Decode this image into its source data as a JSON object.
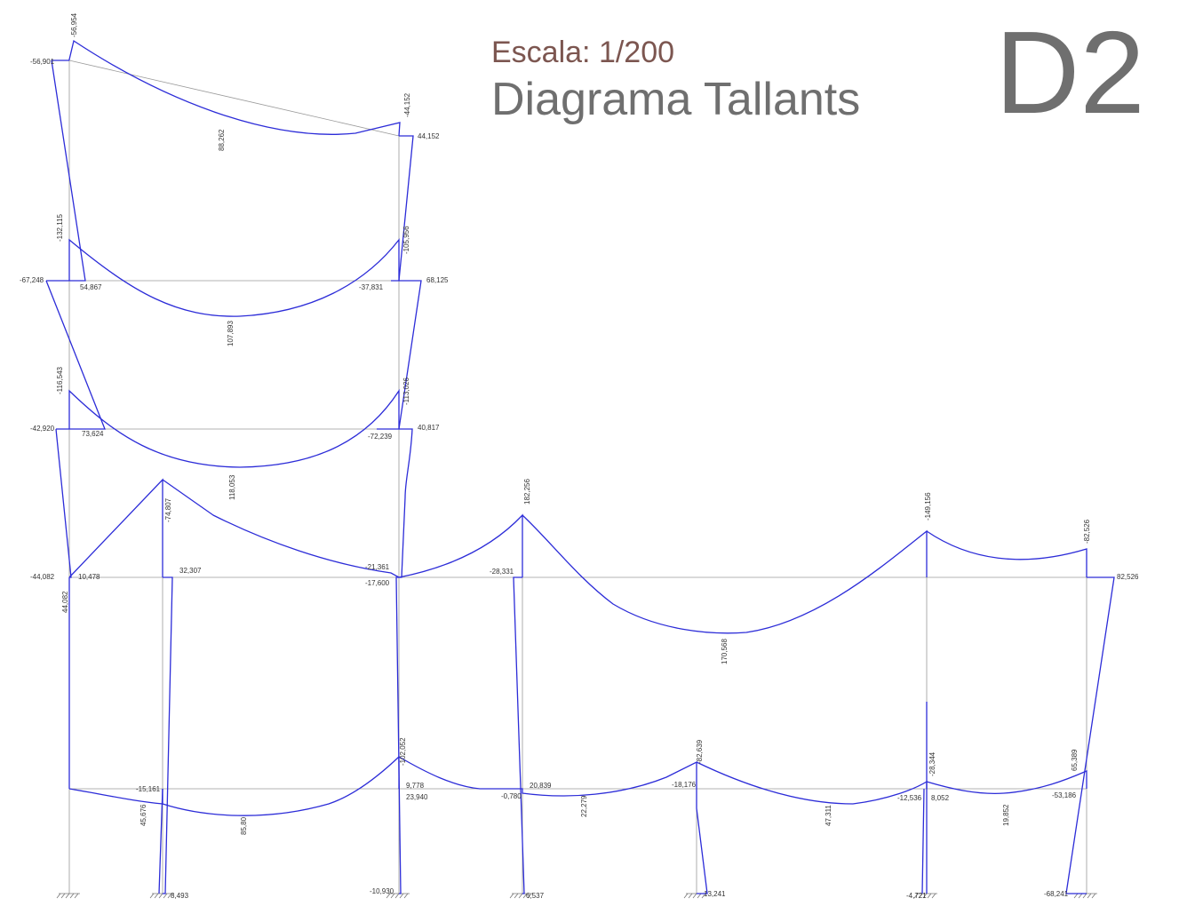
{
  "header": {
    "scale": "Escala: 1/200",
    "title": "Diagrama Tallants",
    "code": "D2"
  },
  "colors": {
    "diagram": "#2c2cd8",
    "structure": "#9a9a9a",
    "scale_text": "#7c5650",
    "title_text": "#6f6f6f"
  },
  "labels": [
    "-56,954",
    "-56,901",
    "-44,152",
    "44,152",
    "88,262",
    "-132,115",
    "-105,956",
    "-67,248",
    "54,867",
    "-37,831",
    "68,125",
    "107,893",
    "-116,543",
    "-113,026",
    "-42,920",
    "73,624",
    "-72,239",
    "40,817",
    "118,053",
    "-74,807",
    "-21,361",
    "-17,600",
    "-44,082",
    "10,478",
    "32,307",
    "44,082",
    "182,256",
    "-28,331",
    "170,568",
    "-149,156",
    "-82,526",
    "82,526",
    "-15,161",
    "45,676",
    "85,80",
    "-102,052",
    "9,778",
    "23,940",
    "-0,780",
    "20,839",
    "22,279",
    "-82,639",
    "-18,176",
    "47,311",
    "-12,536",
    "8,052",
    "-28,344",
    "19,852",
    "-53,186",
    "65,389",
    "8,493",
    "-10,930",
    "6,537",
    "13,241",
    "-4,721",
    "-68,241"
  ]
}
